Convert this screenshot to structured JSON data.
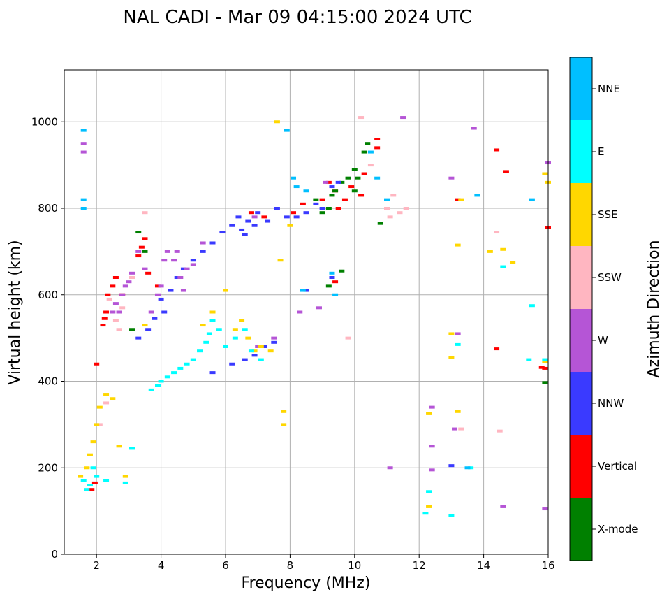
{
  "chart_data": {
    "type": "scatter",
    "title": "NAL CADI - Mar 09 04:15:00 2024 UTC",
    "xlabel": "Frequency (MHz)",
    "ylabel": "Virtual height (km)",
    "xlim": [
      1,
      16
    ],
    "ylim": [
      0,
      1120
    ],
    "grid": true,
    "x_ticks": [
      2,
      4,
      6,
      8,
      10,
      12,
      14,
      16
    ],
    "x_tick_labels": [
      "2",
      "4",
      "6",
      "8",
      "10",
      "12",
      "14",
      "16"
    ],
    "y_ticks": [
      0,
      200,
      400,
      600,
      800,
      1000
    ],
    "y_tick_labels": [
      "0",
      "200",
      "400",
      "600",
      "800",
      "1000"
    ],
    "colorbar": {
      "label": "Azimuth Direction",
      "categories": [
        {
          "name": "X-mode",
          "color": "#008000"
        },
        {
          "name": "Vertical",
          "color": "#ff0000"
        },
        {
          "name": "NNW",
          "color": "#3a3aff"
        },
        {
          "name": "W",
          "color": "#b555d6"
        },
        {
          "name": "SSW",
          "color": "#ffb6c1"
        },
        {
          "name": "SSE",
          "color": "#ffd700"
        },
        {
          "name": "E",
          "color": "#00ffff"
        },
        {
          "name": "NNE",
          "color": "#00bfff"
        }
      ]
    },
    "series": [
      {
        "name": "Vertical",
        "points": [
          [
            1.85,
            150
          ],
          [
            1.95,
            165
          ],
          [
            2.0,
            440
          ],
          [
            2.2,
            530
          ],
          [
            2.25,
            545
          ],
          [
            2.3,
            560
          ],
          [
            2.35,
            600
          ],
          [
            2.5,
            620
          ],
          [
            2.6,
            640
          ],
          [
            2.8,
            600
          ],
          [
            3.3,
            690
          ],
          [
            3.4,
            710
          ],
          [
            3.5,
            730
          ],
          [
            3.6,
            650
          ],
          [
            3.9,
            620
          ],
          [
            6.8,
            790
          ],
          [
            7.2,
            780
          ],
          [
            8.1,
            790
          ],
          [
            8.4,
            810
          ],
          [
            9.0,
            820
          ],
          [
            9.2,
            860
          ],
          [
            9.4,
            840
          ],
          [
            9.5,
            800
          ],
          [
            9.7,
            820
          ],
          [
            9.9,
            850
          ],
          [
            10.2,
            830
          ],
          [
            10.3,
            880
          ],
          [
            10.7,
            940
          ],
          [
            10.7,
            960
          ],
          [
            13.2,
            820
          ],
          [
            14.4,
            935
          ],
          [
            14.7,
            885
          ],
          [
            16.0,
            755
          ],
          [
            14.4,
            475
          ],
          [
            15.9,
            430
          ],
          [
            15.8,
            432
          ],
          [
            9.4,
            630
          ]
        ]
      },
      {
        "name": "X-mode",
        "points": [
          [
            3.3,
            745
          ],
          [
            3.5,
            700
          ],
          [
            3.1,
            520
          ],
          [
            9.0,
            790
          ],
          [
            9.2,
            800
          ],
          [
            9.4,
            840
          ],
          [
            9.6,
            860
          ],
          [
            9.8,
            870
          ],
          [
            10.0,
            890
          ],
          [
            10.3,
            930
          ],
          [
            10.4,
            950
          ],
          [
            10.0,
            840
          ],
          [
            10.8,
            765
          ],
          [
            9.6,
            655
          ],
          [
            9.2,
            620
          ],
          [
            15.9,
            397
          ],
          [
            9.3,
            830
          ],
          [
            8.8,
            820
          ],
          [
            10.1,
            870
          ]
        ]
      },
      {
        "name": "NNW",
        "points": [
          [
            3.3,
            500
          ],
          [
            3.6,
            520
          ],
          [
            3.8,
            545
          ],
          [
            4.0,
            590
          ],
          [
            4.1,
            560
          ],
          [
            4.3,
            610
          ],
          [
            4.5,
            640
          ],
          [
            4.7,
            660
          ],
          [
            5.0,
            680
          ],
          [
            5.3,
            700
          ],
          [
            5.6,
            720
          ],
          [
            5.9,
            745
          ],
          [
            6.2,
            760
          ],
          [
            6.4,
            780
          ],
          [
            6.5,
            750
          ],
          [
            6.6,
            740
          ],
          [
            6.7,
            770
          ],
          [
            6.9,
            760
          ],
          [
            7.0,
            790
          ],
          [
            7.3,
            770
          ],
          [
            7.6,
            800
          ],
          [
            7.9,
            780
          ],
          [
            8.2,
            780
          ],
          [
            8.5,
            790
          ],
          [
            8.8,
            810
          ],
          [
            9.0,
            800
          ],
          [
            9.3,
            850
          ],
          [
            9.5,
            860
          ],
          [
            5.6,
            420
          ],
          [
            6.2,
            440
          ],
          [
            6.6,
            450
          ],
          [
            6.9,
            460
          ],
          [
            7.2,
            480
          ],
          [
            7.5,
            490
          ],
          [
            8.5,
            610
          ],
          [
            9.3,
            640
          ],
          [
            13.0,
            205
          ]
        ]
      },
      {
        "name": "W",
        "points": [
          [
            1.6,
            950
          ],
          [
            1.6,
            930
          ],
          [
            2.5,
            560
          ],
          [
            2.6,
            580
          ],
          [
            2.7,
            560
          ],
          [
            2.8,
            600
          ],
          [
            2.9,
            620
          ],
          [
            3.0,
            630
          ],
          [
            3.1,
            650
          ],
          [
            3.3,
            700
          ],
          [
            3.5,
            660
          ],
          [
            3.7,
            560
          ],
          [
            3.9,
            600
          ],
          [
            4.0,
            620
          ],
          [
            4.1,
            680
          ],
          [
            4.2,
            700
          ],
          [
            4.4,
            680
          ],
          [
            4.5,
            700
          ],
          [
            4.6,
            640
          ],
          [
            4.7,
            610
          ],
          [
            4.8,
            660
          ],
          [
            5.0,
            670
          ],
          [
            5.3,
            720
          ],
          [
            6.9,
            780
          ],
          [
            7.5,
            500
          ],
          [
            7.0,
            480
          ],
          [
            8.3,
            560
          ],
          [
            8.9,
            570
          ],
          [
            9.1,
            860
          ],
          [
            11.1,
            200
          ],
          [
            11.5,
            1010
          ],
          [
            12.4,
            340
          ],
          [
            12.4,
            250
          ],
          [
            12.4,
            195
          ],
          [
            13.0,
            870
          ],
          [
            13.1,
            290
          ],
          [
            13.7,
            985
          ],
          [
            14.6,
            110
          ],
          [
            13.2,
            510
          ],
          [
            16.0,
            905
          ],
          [
            15.9,
            105
          ]
        ]
      },
      {
        "name": "SSW",
        "points": [
          [
            2.1,
            300
          ],
          [
            2.3,
            350
          ],
          [
            2.4,
            590
          ],
          [
            2.6,
            540
          ],
          [
            2.7,
            520
          ],
          [
            2.8,
            570
          ],
          [
            3.1,
            640
          ],
          [
            3.5,
            790
          ],
          [
            9.8,
            500
          ],
          [
            10.2,
            1010
          ],
          [
            10.5,
            900
          ],
          [
            11.0,
            800
          ],
          [
            11.1,
            780
          ],
          [
            11.2,
            830
          ],
          [
            11.4,
            790
          ],
          [
            11.6,
            800
          ],
          [
            13.3,
            290
          ],
          [
            14.4,
            745
          ],
          [
            14.5,
            285
          ]
        ]
      },
      {
        "name": "SSE",
        "points": [
          [
            1.5,
            180
          ],
          [
            1.7,
            200
          ],
          [
            1.8,
            230
          ],
          [
            1.9,
            260
          ],
          [
            2.0,
            300
          ],
          [
            2.1,
            340
          ],
          [
            2.3,
            370
          ],
          [
            2.5,
            360
          ],
          [
            2.7,
            250
          ],
          [
            2.9,
            180
          ],
          [
            3.5,
            530
          ],
          [
            5.3,
            530
          ],
          [
            5.6,
            560
          ],
          [
            6.0,
            610
          ],
          [
            6.3,
            520
          ],
          [
            6.5,
            540
          ],
          [
            6.7,
            500
          ],
          [
            6.9,
            470
          ],
          [
            7.1,
            480
          ],
          [
            7.4,
            470
          ],
          [
            7.6,
            1000
          ],
          [
            7.7,
            680
          ],
          [
            7.8,
            330
          ],
          [
            7.8,
            300
          ],
          [
            8.0,
            760
          ],
          [
            12.3,
            110
          ],
          [
            13.2,
            715
          ],
          [
            13.3,
            820
          ],
          [
            13.0,
            510
          ],
          [
            13.0,
            455
          ],
          [
            13.2,
            330
          ],
          [
            14.2,
            700
          ],
          [
            14.6,
            705
          ],
          [
            14.9,
            675
          ],
          [
            15.9,
            880
          ],
          [
            16.0,
            860
          ],
          [
            15.9,
            445
          ],
          [
            12.3,
            325
          ]
        ]
      },
      {
        "name": "E",
        "points": [
          [
            1.6,
            170
          ],
          [
            1.7,
            150
          ],
          [
            1.8,
            160
          ],
          [
            1.9,
            200
          ],
          [
            2.0,
            180
          ],
          [
            2.3,
            170
          ],
          [
            2.9,
            165
          ],
          [
            3.1,
            245
          ],
          [
            3.7,
            380
          ],
          [
            3.9,
            390
          ],
          [
            4.0,
            400
          ],
          [
            4.2,
            410
          ],
          [
            4.4,
            420
          ],
          [
            4.6,
            430
          ],
          [
            4.8,
            440
          ],
          [
            5.0,
            450
          ],
          [
            5.2,
            470
          ],
          [
            5.4,
            490
          ],
          [
            5.5,
            510
          ],
          [
            5.6,
            540
          ],
          [
            5.8,
            520
          ],
          [
            6.0,
            480
          ],
          [
            6.3,
            500
          ],
          [
            6.6,
            520
          ],
          [
            6.8,
            470
          ],
          [
            7.1,
            450
          ],
          [
            13.0,
            90
          ],
          [
            12.3,
            145
          ],
          [
            12.2,
            95
          ],
          [
            14.6,
            665
          ],
          [
            15.4,
            450
          ],
          [
            15.5,
            575
          ],
          [
            15.9,
            450
          ],
          [
            13.6,
            200
          ],
          [
            13.2,
            485
          ]
        ]
      },
      {
        "name": "NNE",
        "points": [
          [
            1.6,
            980
          ],
          [
            1.6,
            820
          ],
          [
            1.6,
            800
          ],
          [
            7.9,
            980
          ],
          [
            8.1,
            870
          ],
          [
            8.2,
            850
          ],
          [
            8.5,
            840
          ],
          [
            8.4,
            610
          ],
          [
            9.3,
            650
          ],
          [
            9.4,
            600
          ],
          [
            10.5,
            930
          ],
          [
            10.7,
            870
          ],
          [
            11.0,
            820
          ],
          [
            13.8,
            830
          ],
          [
            15.5,
            820
          ],
          [
            13.5,
            200
          ]
        ]
      }
    ]
  }
}
